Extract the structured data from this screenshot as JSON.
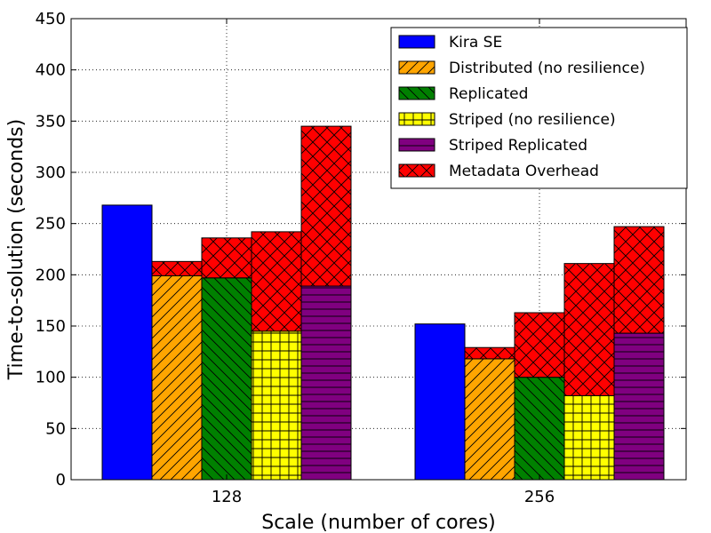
{
  "chart_data": {
    "type": "bar",
    "stacked_top": "Metadata Overhead",
    "title": "",
    "xlabel": "Scale (number of cores)",
    "ylabel": "Time-to-solution (seconds)",
    "ylim": [
      0,
      450
    ],
    "yticks": [
      0,
      50,
      100,
      150,
      200,
      250,
      300,
      350,
      400,
      450
    ],
    "grid": true,
    "legend_position": "top-right",
    "categories": [
      "128",
      "256"
    ],
    "series": [
      {
        "name": "Kira SE",
        "values": [
          268,
          152
        ],
        "color": "#0000ff",
        "hatch": "none"
      },
      {
        "name": "Distributed (no resilience)",
        "values": [
          199,
          118
        ],
        "color": "#ffa500",
        "hatch": "forward-diagonal"
      },
      {
        "name": "Replicated",
        "values": [
          197,
          100
        ],
        "color": "#008000",
        "hatch": "back-diagonal"
      },
      {
        "name": "Striped (no resilience)",
        "values": [
          145,
          82
        ],
        "color": "#ffff00",
        "hatch": "grid"
      },
      {
        "name": "Striped Replicated",
        "values": [
          189,
          143
        ],
        "color": "#800080",
        "hatch": "horizontal"
      },
      {
        "name": "Metadata Overhead",
        "color": "#ff0000",
        "hatch": "crosshatch",
        "stacked_on": [
          "Distributed (no resilience)",
          "Replicated",
          "Striped (no resilience)",
          "Striped Replicated"
        ],
        "values": [
          [
            14,
            39,
            97,
            156
          ],
          [
            11,
            63,
            129,
            104
          ]
        ]
      }
    ]
  }
}
